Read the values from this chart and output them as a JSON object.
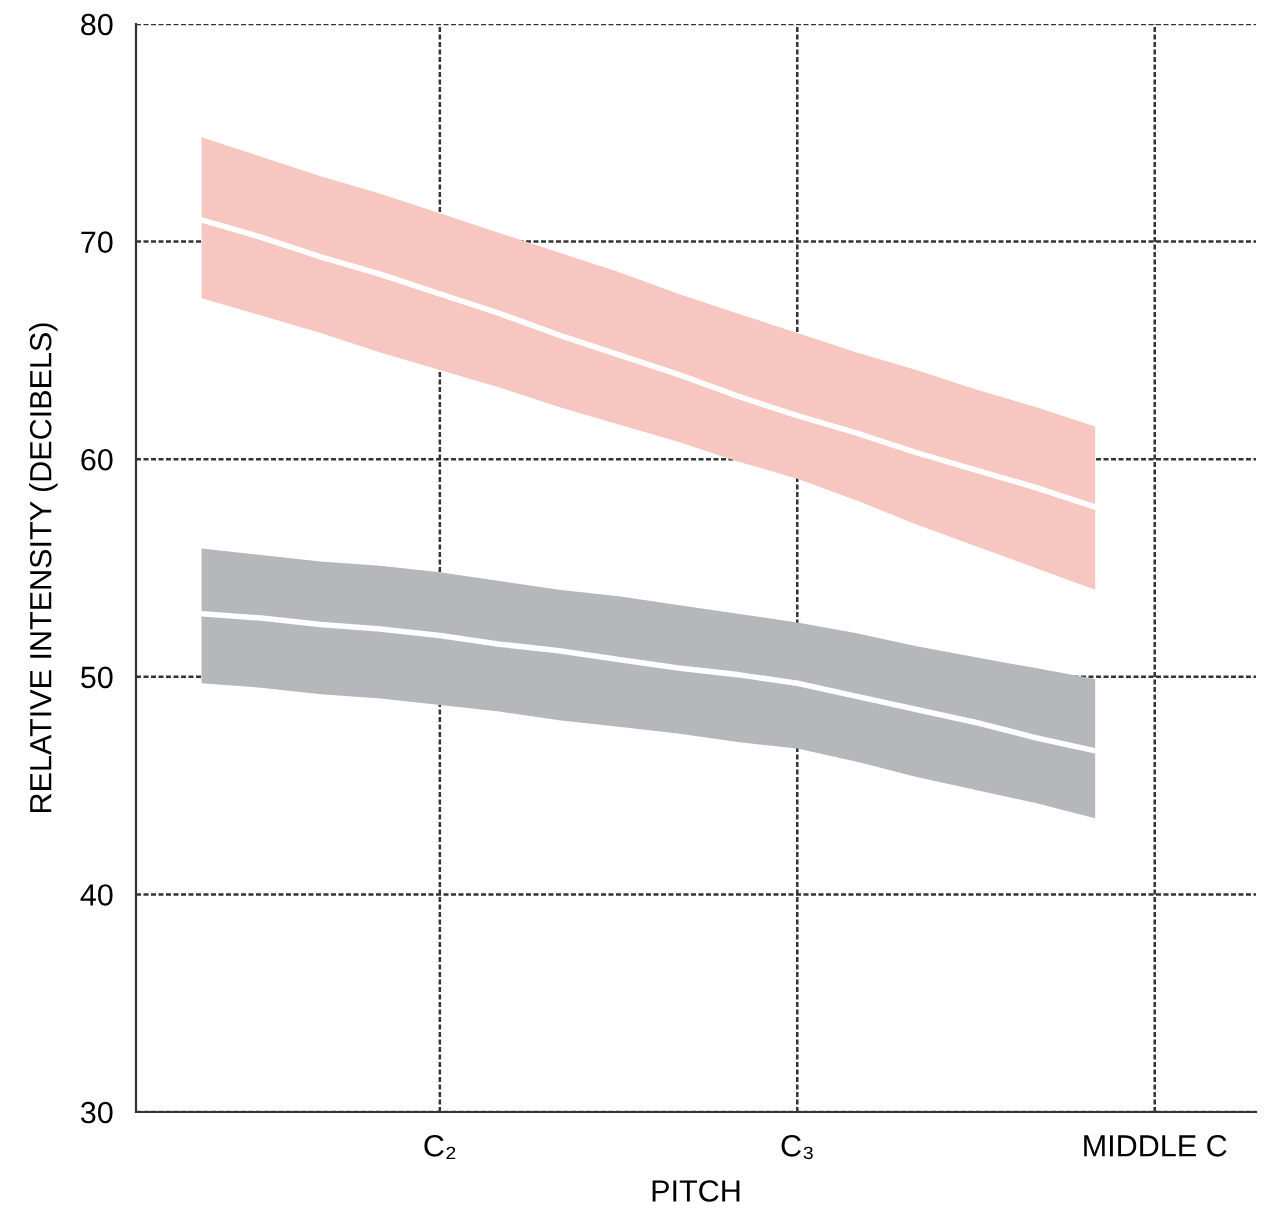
{
  "chart_data": {
    "type": "line",
    "xlabel": "PITCH",
    "ylabel": "RELATIVE INTENSITY (DECIBELS)",
    "categories": [
      null,
      null,
      null,
      null,
      "C₂",
      null,
      null,
      null,
      null,
      null,
      "C₃",
      null,
      null,
      null,
      null,
      null,
      "MIDDLE C"
    ],
    "ylim": [
      30,
      80
    ],
    "yticks": [
      30,
      40,
      50,
      60,
      70,
      80
    ],
    "grid": true,
    "series": [
      {
        "color": "#ffffff",
        "values": [
          71.0,
          70.2,
          69.3,
          68.5,
          67.6,
          66.7,
          65.7,
          64.8,
          63.9,
          62.9,
          62.0,
          61.2,
          60.3,
          59.5,
          58.7,
          57.8,
          null
        ],
        "lower": [
          67.4,
          66.6,
          65.8,
          64.9,
          64.1,
          63.3,
          62.4,
          61.6,
          60.8,
          59.9,
          59.1,
          58.1,
          57.0,
          56.0,
          55.0,
          54.0,
          null
        ],
        "upper": [
          74.8,
          73.9,
          73.0,
          72.2,
          71.3,
          70.4,
          69.5,
          68.6,
          67.6,
          66.7,
          65.8,
          64.9,
          64.1,
          63.2,
          62.4,
          61.5,
          null
        ]
      },
      {
        "color": "#ffffff",
        "values": [
          52.9,
          52.7,
          52.4,
          52.2,
          51.9,
          51.5,
          51.2,
          50.8,
          50.4,
          50.1,
          49.7,
          49.1,
          48.5,
          47.9,
          47.2,
          46.6,
          null
        ],
        "lower": [
          49.7,
          49.5,
          49.2,
          49.0,
          48.7,
          48.4,
          48.0,
          47.7,
          47.4,
          47.0,
          46.7,
          46.1,
          45.4,
          44.8,
          44.2,
          43.5,
          null
        ],
        "upper": [
          55.9,
          55.6,
          55.3,
          55.1,
          54.8,
          54.4,
          54.0,
          53.7,
          53.3,
          52.9,
          52.5,
          52.0,
          51.4,
          50.9,
          50.4,
          49.9,
          null
        ]
      }
    ]
  }
}
